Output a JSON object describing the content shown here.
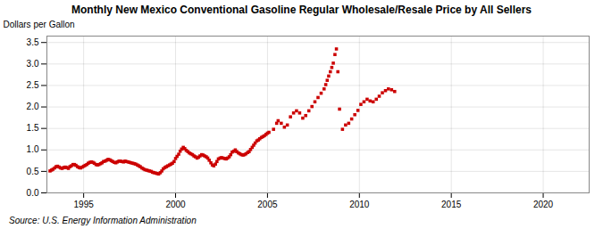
{
  "chart_data": {
    "type": "scatter",
    "title": "Monthly New Mexico Conventional Gasoline Regular Wholesale/Resale Price by All Sellers",
    "ylabel": "Dollars per Gallon",
    "annotation": "Source: U.S. Energy Information Administration",
    "color": "#cc0000",
    "marker": "square",
    "grid": true,
    "xlim": [
      1993.0,
      2022.5
    ],
    "ylim": [
      0.0,
      3.65
    ],
    "xticks": [
      1995,
      2000,
      2005,
      2010,
      2015,
      2020
    ],
    "yticks": [
      {
        "value": 0.0,
        "label": "0.0"
      },
      0.5,
      {
        "value": 1.0,
        "label": "1.0"
      },
      1.5,
      {
        "value": 2.0,
        "label": "2.0"
      },
      2.5,
      {
        "value": 3.0,
        "label": "3.0"
      },
      3.5
    ],
    "x": [
      1993.17,
      1993.25,
      1993.33,
      1993.42,
      1993.5,
      1993.58,
      1993.67,
      1993.75,
      1993.83,
      1993.92,
      1994.0,
      1994.08,
      1994.17,
      1994.25,
      1994.33,
      1994.42,
      1994.5,
      1994.58,
      1994.67,
      1994.75,
      1994.83,
      1994.92,
      1995.0,
      1995.08,
      1995.17,
      1995.25,
      1995.33,
      1995.42,
      1995.5,
      1995.58,
      1995.67,
      1995.75,
      1995.83,
      1995.92,
      1996.0,
      1996.08,
      1996.17,
      1996.25,
      1996.33,
      1996.42,
      1996.5,
      1996.58,
      1996.67,
      1996.75,
      1996.83,
      1996.92,
      1997.0,
      1997.08,
      1997.17,
      1997.25,
      1997.33,
      1997.42,
      1997.5,
      1997.58,
      1997.67,
      1997.75,
      1997.83,
      1997.92,
      1998.0,
      1998.08,
      1998.17,
      1998.25,
      1998.33,
      1998.42,
      1998.5,
      1998.58,
      1998.67,
      1998.75,
      1998.83,
      1998.92,
      1999.0,
      1999.08,
      1999.17,
      1999.25,
      1999.33,
      1999.42,
      1999.5,
      1999.58,
      1999.67,
      1999.75,
      1999.83,
      1999.92,
      2000.0,
      2000.08,
      2000.17,
      2000.25,
      2000.33,
      2000.42,
      2000.5,
      2000.58,
      2000.67,
      2000.75,
      2000.83,
      2000.92,
      2001.0,
      2001.08,
      2001.17,
      2001.25,
      2001.33,
      2001.42,
      2001.5,
      2001.58,
      2001.67,
      2001.75,
      2001.83,
      2001.92,
      2002.0,
      2002.08,
      2002.17,
      2002.25,
      2002.33,
      2002.42,
      2002.5,
      2002.58,
      2002.67,
      2002.75,
      2002.83,
      2002.92,
      2003.0,
      2003.08,
      2003.17,
      2003.25,
      2003.33,
      2003.42,
      2003.5,
      2003.58,
      2003.67,
      2003.75,
      2003.83,
      2003.92,
      2004.0,
      2004.08,
      2004.17,
      2004.25,
      2004.33,
      2004.42,
      2004.5,
      2004.58,
      2004.67,
      2004.75,
      2004.83,
      2004.92,
      2005.0,
      2005.08,
      2005.33,
      2005.5,
      2005.58,
      2005.75,
      2005.92,
      2006.08,
      2006.25,
      2006.42,
      2006.58,
      2006.75,
      2006.92,
      2007.08,
      2007.25,
      2007.42,
      2007.58,
      2007.75,
      2007.92,
      2008.08,
      2008.17,
      2008.25,
      2008.33,
      2008.42,
      2008.5,
      2008.58,
      2008.67,
      2008.75,
      2008.83,
      2008.92,
      2009.08,
      2009.25,
      2009.42,
      2009.58,
      2009.75,
      2009.92,
      2010.08,
      2010.25,
      2010.42,
      2010.58,
      2010.75,
      2010.92,
      2011.08,
      2011.25,
      2011.42,
      2011.58,
      2011.75,
      2011.92
    ],
    "values": [
      0.51,
      0.53,
      0.55,
      0.58,
      0.61,
      0.62,
      0.6,
      0.58,
      0.57,
      0.59,
      0.6,
      0.59,
      0.57,
      0.61,
      0.63,
      0.66,
      0.66,
      0.64,
      0.61,
      0.59,
      0.58,
      0.6,
      0.62,
      0.64,
      0.66,
      0.69,
      0.71,
      0.72,
      0.71,
      0.69,
      0.66,
      0.65,
      0.66,
      0.68,
      0.7,
      0.73,
      0.74,
      0.76,
      0.78,
      0.77,
      0.75,
      0.73,
      0.71,
      0.7,
      0.72,
      0.74,
      0.74,
      0.73,
      0.72,
      0.74,
      0.73,
      0.72,
      0.71,
      0.7,
      0.69,
      0.68,
      0.67,
      0.65,
      0.63,
      0.61,
      0.58,
      0.56,
      0.54,
      0.53,
      0.52,
      0.51,
      0.5,
      0.48,
      0.47,
      0.46,
      0.45,
      0.44,
      0.47,
      0.51,
      0.56,
      0.59,
      0.61,
      0.63,
      0.65,
      0.67,
      0.69,
      0.73,
      0.8,
      0.85,
      0.9,
      0.97,
      1.02,
      1.06,
      1.03,
      0.99,
      0.96,
      0.93,
      0.91,
      0.89,
      0.86,
      0.84,
      0.81,
      0.83,
      0.86,
      0.89,
      0.88,
      0.86,
      0.84,
      0.81,
      0.76,
      0.7,
      0.65,
      0.63,
      0.67,
      0.73,
      0.79,
      0.81,
      0.82,
      0.81,
      0.8,
      0.79,
      0.81,
      0.84,
      0.89,
      0.95,
      0.97,
      1.0,
      0.96,
      0.93,
      0.91,
      0.89,
      0.88,
      0.89,
      0.91,
      0.94,
      0.96,
      1.01,
      1.06,
      1.11,
      1.16,
      1.21,
      1.23,
      1.26,
      1.29,
      1.31,
      1.33,
      1.36,
      1.39,
      1.41,
      1.48,
      1.62,
      1.68,
      1.62,
      1.53,
      1.58,
      1.77,
      1.86,
      1.91,
      1.86,
      1.74,
      1.8,
      1.91,
      2.01,
      2.12,
      2.22,
      2.32,
      2.42,
      2.52,
      2.62,
      2.72,
      2.82,
      2.92,
      3.02,
      3.22,
      3.35,
      2.82,
      1.95,
      1.48,
      1.58,
      1.62,
      1.72,
      1.82,
      1.92,
      2.06,
      2.12,
      2.18,
      2.14,
      2.12,
      2.18,
      2.25,
      2.33,
      2.38,
      2.42,
      2.4,
      2.36
    ]
  }
}
